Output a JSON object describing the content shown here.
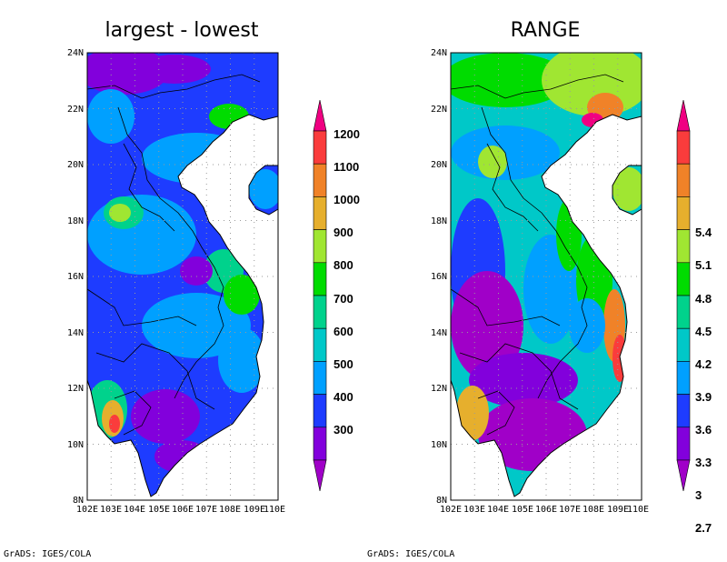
{
  "credit": "GrADS: IGES/COLA",
  "lat_labels": [
    "24N",
    "22N",
    "20N",
    "18N",
    "16N",
    "14N",
    "12N",
    "10N",
    "8N"
  ],
  "lon_labels": [
    "102E",
    "103E",
    "104E",
    "105E",
    "106E",
    "107E",
    "108E",
    "109E",
    "110E"
  ],
  "panels": [
    {
      "title": "largest - lowest",
      "colorbar": [
        "300",
        "400",
        "500",
        "600",
        "700",
        "800",
        "900",
        "1000",
        "1100",
        "1200"
      ]
    },
    {
      "title": "RANGE",
      "colorbar": [
        "2.7",
        "3",
        "3.3",
        "3.6",
        "3.9",
        "4.2",
        "4.5",
        "4.8",
        "5.1",
        "5.4"
      ]
    }
  ],
  "colors": {
    "levels": [
      "#a000c8",
      "#8200dc",
      "#1e3cff",
      "#00a0ff",
      "#00c8c8",
      "#00d28c",
      "#00dc00",
      "#a0e632",
      "#e6af2d",
      "#f08228",
      "#fa3c3c",
      "#f00082"
    ],
    "ocean": "#ffffff",
    "border": "#000000",
    "grid": "#9a9a9a"
  }
}
